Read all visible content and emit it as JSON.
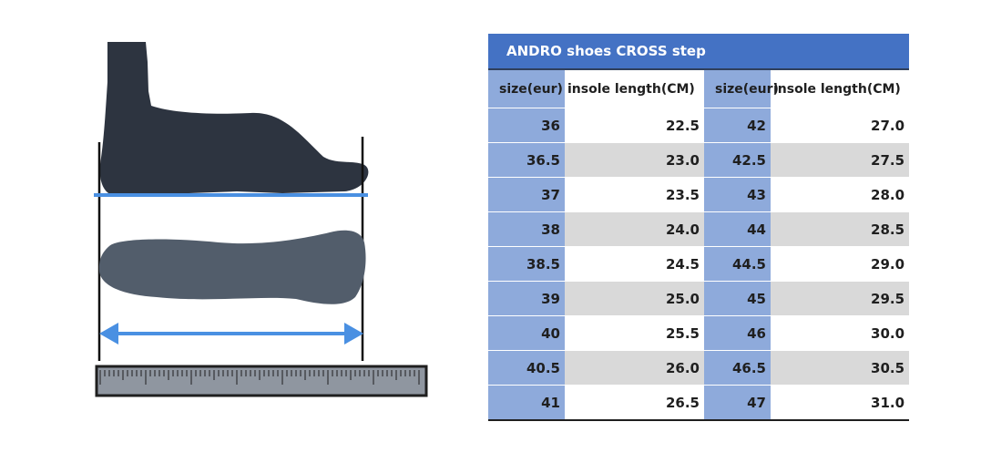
{
  "table": {
    "title": "ANDRO shoes CROSS  step",
    "headers": [
      "size(eur)",
      "insole length(CM)",
      "size(eur)",
      "insole length(CM)"
    ],
    "rows": [
      [
        "36",
        "22.5",
        "42",
        "27.0"
      ],
      [
        "36.5",
        "23.0",
        "42.5",
        "27.5"
      ],
      [
        "37",
        "23.5",
        "43",
        "28.0"
      ],
      [
        "38",
        "24.0",
        "44",
        "28.5"
      ],
      [
        "38.5",
        "24.5",
        "44.5",
        "29.0"
      ],
      [
        "39",
        "25.0",
        "45",
        "29.5"
      ],
      [
        "40",
        "25.5",
        "46",
        "30.0"
      ],
      [
        "40.5",
        "26.0",
        "46.5",
        "30.5"
      ],
      [
        "41",
        "26.5",
        "47",
        "31.0"
      ]
    ]
  },
  "illustration": {
    "foot_side_color": "#2d3440",
    "foot_sole_color": "#525d6b",
    "measure_color": "#4a90e2",
    "ruler_color": "#8f96a0"
  }
}
